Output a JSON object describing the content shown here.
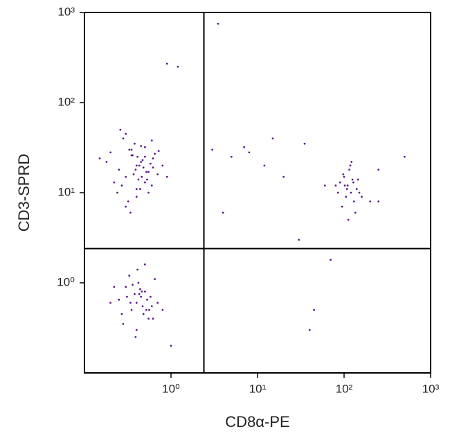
{
  "chart_data": {
    "type": "scatter",
    "x_label": "CD8α-PE",
    "y_label": "CD3-SPRD",
    "log_x": true,
    "log_y": true,
    "xlim": [
      0.1,
      1000
    ],
    "ylim": [
      0.1,
      1000
    ],
    "xticks": [
      {
        "value": 1,
        "label": "10⁰"
      },
      {
        "value": 10,
        "label": "10¹"
      },
      {
        "value": 100,
        "label": "10²"
      },
      {
        "value": 1000,
        "label": "10³"
      }
    ],
    "yticks": [
      {
        "value": 1,
        "label": "10⁰"
      },
      {
        "value": 10,
        "label": "10¹"
      },
      {
        "value": 100,
        "label": "10²"
      },
      {
        "value": 1000,
        "label": "10³"
      }
    ],
    "quadrant": {
      "x": 2.4,
      "y": 2.4
    },
    "color": "#5b1a8c",
    "x": [
      0.4,
      0.3,
      0.5,
      0.35,
      0.6,
      0.25,
      0.45,
      0.55,
      0.2,
      0.7,
      0.38,
      0.42,
      0.32,
      0.48,
      0.28,
      0.62,
      0.52,
      0.36,
      0.44,
      0.22,
      0.8,
      0.3,
      0.4,
      0.5,
      0.65,
      0.18,
      0.34,
      0.46,
      0.58,
      0.27,
      0.39,
      0.41,
      0.33,
      0.53,
      0.6,
      0.24,
      0.47,
      0.37,
      0.72,
      0.3,
      0.43,
      0.5,
      0.35,
      0.55,
      0.26,
      0.45,
      0.9,
      0.15,
      0.4,
      0.62,
      0.4,
      0.5,
      0.35,
      0.45,
      0.3,
      0.6,
      0.55,
      0.25,
      0.42,
      0.48,
      0.38,
      0.7,
      0.33,
      0.52,
      0.28,
      0.44,
      0.58,
      0.2,
      0.4,
      0.65,
      0.36,
      0.47,
      0.31,
      0.53,
      0.41,
      0.8,
      0.39,
      0.46,
      0.27,
      0.5,
      0.34,
      0.62,
      0.43,
      0.22,
      0.56,
      110,
      120,
      100,
      130,
      90,
      140,
      115,
      105,
      125,
      95,
      150,
      80,
      135,
      118,
      108,
      160,
      98,
      128,
      112,
      200,
      85,
      145,
      122,
      102,
      250,
      3,
      5,
      8,
      12,
      20,
      35,
      60,
      4,
      15,
      45,
      1.2,
      0.9,
      250,
      500,
      30,
      7,
      1,
      3.5,
      40,
      70
    ],
    "values": [
      20,
      15,
      25,
      30,
      12,
      18,
      22,
      10,
      28,
      16,
      35,
      14,
      8,
      19,
      40,
      24,
      17,
      26,
      11,
      13,
      20,
      45,
      9,
      32,
      27,
      22,
      6,
      15,
      21,
      12,
      18,
      25,
      30,
      14,
      38,
      10,
      23,
      16,
      29,
      7,
      20,
      13,
      26,
      17,
      50,
      33,
      15,
      24,
      11,
      19,
      0.6,
      0.8,
      0.5,
      0.7,
      0.9,
      0.55,
      0.4,
      0.65,
      1.0,
      0.45,
      0.75,
      0.6,
      1.2,
      0.5,
      0.35,
      0.85,
      0.7,
      0.6,
      0.3,
      1.1,
      0.95,
      0.55,
      0.7,
      0.65,
      1.4,
      0.5,
      0.25,
      0.8,
      0.45,
      1.6,
      0.6,
      0.4,
      0.75,
      0.9,
      0.5,
      12,
      10,
      15,
      8,
      13,
      11,
      18,
      9,
      14,
      7,
      10,
      12,
      6,
      20,
      11,
      9,
      16,
      13,
      5,
      8,
      10,
      14,
      22,
      12,
      8,
      30,
      25,
      28,
      20,
      15,
      35,
      12,
      6,
      40,
      0.5,
      250,
      270,
      18,
      25,
      3,
      32,
      0.2,
      750,
      0.3,
      1.8
    ]
  }
}
